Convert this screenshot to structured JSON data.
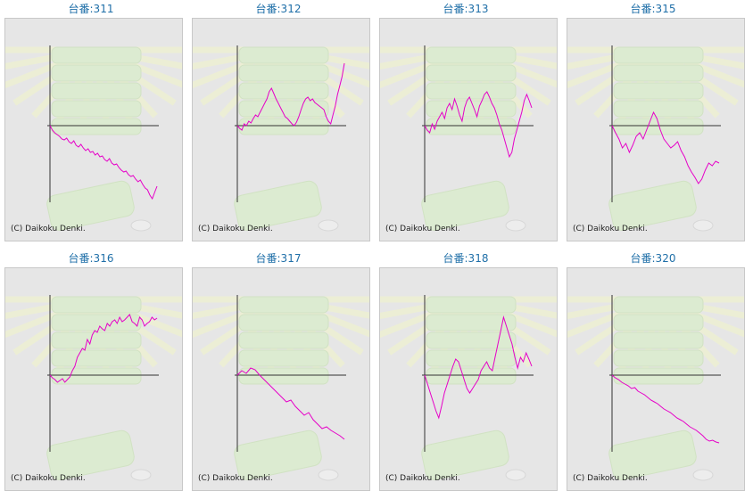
{
  "page": {
    "copyright": "(C) Daikoku Denki."
  },
  "colors": {
    "line": "#e600c8",
    "axis": "#333333",
    "title": "#1f6fa8",
    "background": "#e6e6e6",
    "decoration": "#d4f0c0"
  },
  "chart_data": [
    {
      "type": "line",
      "title": "台番:311",
      "xlabel": "",
      "ylabel": "",
      "series": [
        {
          "values": [
            0,
            -5,
            -8,
            -10,
            -12,
            -15,
            -16,
            -14,
            -18,
            -20,
            -17,
            -22,
            -24,
            -21,
            -25,
            -28,
            -26,
            -30,
            -29,
            -33,
            -31,
            -35,
            -34,
            -38,
            -40,
            -37,
            -42,
            -44,
            -43,
            -47,
            -50,
            -52,
            -51,
            -55,
            -57,
            -56,
            -60,
            -63,
            -61,
            -66,
            -70,
            -72,
            -78,
            -82,
            -75,
            -68
          ]
        }
      ]
    },
    {
      "type": "line",
      "title": "台番:312",
      "xlabel": "",
      "ylabel": "",
      "series": [
        {
          "values": [
            0,
            -3,
            -5,
            2,
            0,
            5,
            3,
            8,
            12,
            10,
            15,
            20,
            25,
            30,
            38,
            42,
            36,
            30,
            25,
            20,
            15,
            10,
            8,
            5,
            2,
            0,
            4,
            10,
            18,
            25,
            30,
            32,
            28,
            30,
            26,
            24,
            22,
            20,
            18,
            10,
            5,
            2,
            12,
            22,
            35,
            45,
            55,
            70
          ]
        }
      ]
    },
    {
      "type": "line",
      "title": "台番:313",
      "xlabel": "",
      "ylabel": "",
      "series": [
        {
          "values": [
            0,
            -5,
            -8,
            2,
            -4,
            5,
            10,
            15,
            8,
            20,
            25,
            18,
            30,
            22,
            12,
            5,
            20,
            28,
            32,
            25,
            18,
            10,
            22,
            28,
            35,
            38,
            32,
            25,
            20,
            12,
            2,
            -5,
            -15,
            -25,
            -35,
            -30,
            -15,
            -5,
            5,
            15,
            28,
            35,
            28,
            20
          ]
        }
      ]
    },
    {
      "type": "line",
      "title": "台番:315",
      "xlabel": "",
      "ylabel": "",
      "series": [
        {
          "values": [
            0,
            -8,
            -15,
            -25,
            -20,
            -30,
            -22,
            -12,
            -8,
            -15,
            -5,
            5,
            15,
            8,
            -5,
            -15,
            -20,
            -25,
            -22,
            -18,
            -28,
            -35,
            -45,
            -52,
            -58,
            -65,
            -60,
            -50,
            -42,
            -45,
            -40,
            -42
          ]
        }
      ]
    },
    {
      "type": "line",
      "title": "台番:316",
      "xlabel": "",
      "ylabel": "",
      "series": [
        {
          "values": [
            0,
            -3,
            -5,
            -8,
            -6,
            -4,
            -8,
            -5,
            -2,
            5,
            10,
            20,
            25,
            30,
            28,
            40,
            35,
            45,
            50,
            48,
            55,
            52,
            50,
            58,
            55,
            60,
            62,
            58,
            65,
            60,
            62,
            65,
            68,
            60,
            58,
            55,
            65,
            62,
            55,
            58,
            60,
            65,
            62,
            64
          ]
        }
      ]
    },
    {
      "type": "line",
      "title": "台番:317",
      "xlabel": "",
      "ylabel": "",
      "series": [
        {
          "values": [
            0,
            5,
            2,
            8,
            6,
            0,
            -5,
            -10,
            -15,
            -20,
            -25,
            -30,
            -28,
            -35,
            -40,
            -45,
            -42,
            -50,
            -55,
            -60,
            -58,
            -62,
            -65,
            -68,
            -72
          ]
        }
      ]
    },
    {
      "type": "line",
      "title": "台番:318",
      "xlabel": "",
      "ylabel": "",
      "series": [
        {
          "values": [
            0,
            -10,
            -20,
            -30,
            -40,
            -48,
            -35,
            -20,
            -10,
            0,
            10,
            18,
            15,
            5,
            -5,
            -15,
            -20,
            -15,
            -10,
            -5,
            5,
            10,
            15,
            8,
            5,
            20,
            35,
            50,
            65,
            55,
            45,
            35,
            20,
            8,
            20,
            15,
            25,
            18,
            10
          ]
        }
      ]
    },
    {
      "type": "line",
      "title": "台番:320",
      "xlabel": "",
      "ylabel": "",
      "series": [
        {
          "values": [
            0,
            -3,
            -5,
            -8,
            -10,
            -12,
            -15,
            -14,
            -18,
            -20,
            -22,
            -25,
            -28,
            -30,
            -32,
            -35,
            -38,
            -40,
            -42,
            -45,
            -48,
            -50,
            -52,
            -55,
            -58,
            -60,
            -62,
            -65,
            -68,
            -72,
            -74,
            -73,
            -75,
            -76
          ]
        }
      ]
    }
  ]
}
